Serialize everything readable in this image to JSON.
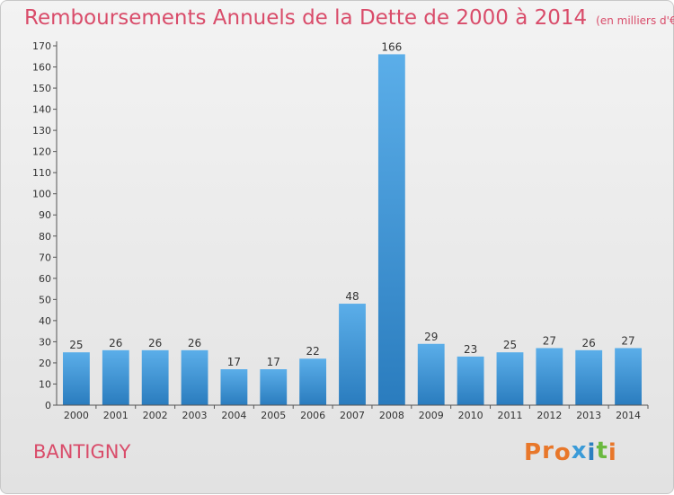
{
  "header": {
    "title": "Remboursements Annuels de la Dette de 2000 à 2014",
    "unit": "(en milliers d'€)"
  },
  "footer": {
    "commune": "BANTIGNY",
    "logo_text": "Proxiti"
  },
  "colors": {
    "bar_light": "#5baee9",
    "bar_dark": "#2a7cbe",
    "title": "#d94c6a",
    "logo_letters": [
      "#e8772a",
      "#e8772a",
      "#e8772a",
      "#3a9bd8",
      "#2c7fc0",
      "#6ab93f",
      "#e8772a"
    ]
  },
  "chart_data": {
    "type": "bar",
    "title": "Remboursements Annuels de la Dette de 2000 à 2014",
    "xlabel": "",
    "ylabel": "",
    "categories": [
      "2000",
      "2001",
      "2002",
      "2003",
      "2004",
      "2005",
      "2006",
      "2007",
      "2008",
      "2009",
      "2010",
      "2011",
      "2012",
      "2013",
      "2014"
    ],
    "values": [
      25,
      26,
      26,
      26,
      17,
      17,
      22,
      48,
      166,
      29,
      23,
      25,
      27,
      26,
      27
    ],
    "ylim": [
      0,
      170
    ],
    "yticks": [
      0,
      10,
      20,
      30,
      40,
      50,
      60,
      70,
      80,
      90,
      100,
      110,
      120,
      130,
      140,
      150,
      160,
      170
    ],
    "grid": false,
    "data_labels": true
  }
}
